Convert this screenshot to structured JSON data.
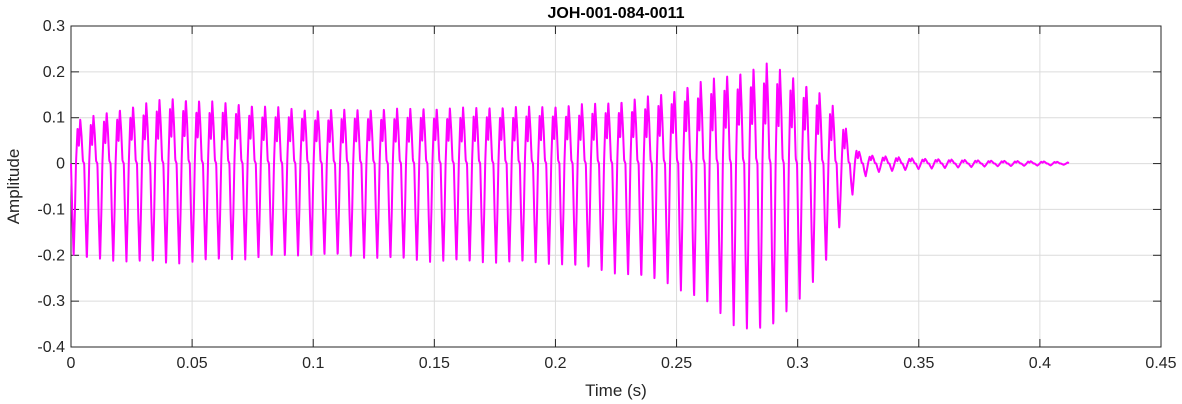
{
  "chart_data": {
    "type": "line",
    "title": "JOH-001-084-0011",
    "xlabel": "Time (s)",
    "ylabel": "Amplitude",
    "xlim": [
      0,
      0.45
    ],
    "ylim": [
      -0.4,
      0.3
    ],
    "x_ticks": [
      0,
      0.05,
      0.1,
      0.15,
      0.2,
      0.25,
      0.3,
      0.35,
      0.4,
      0.45
    ],
    "x_tick_labels": [
      "0",
      "0.05",
      "0.1",
      "0.15",
      "0.2",
      "0.25",
      "0.3",
      "0.35",
      "0.4",
      "0.45"
    ],
    "y_ticks": [
      -0.4,
      -0.3,
      -0.2,
      -0.1,
      0,
      0.1,
      0.2,
      0.3
    ],
    "y_tick_labels": [
      "-0.4",
      "-0.3",
      "-0.2",
      "-0.1",
      "0",
      "0.1",
      "0.2",
      "0.3"
    ],
    "grid": true,
    "box": true,
    "colors": {
      "series": "#ff00ff",
      "grid": "#dcdcdc",
      "axes": "#262626"
    },
    "series": [
      {
        "period_s": 0.00545,
        "waveform_samples": [
          0,
          -0.55,
          -1.0,
          -0.5,
          0.15,
          0.75,
          0.35,
          0.9,
          0.55,
          0.05,
          0
        ],
        "envelope": {
          "x": [
            0,
            0.005,
            0.04,
            0.1,
            0.15,
            0.2,
            0.225,
            0.245,
            0.26,
            0.275,
            0.288,
            0.3,
            0.31,
            0.316,
            0.32,
            0.325,
            0.33,
            0.35,
            0.38,
            0.405,
            0.412
          ],
          "y_max": [
            0.1,
            0.11,
            0.16,
            0.13,
            0.135,
            0.14,
            0.15,
            0.17,
            0.2,
            0.22,
            0.245,
            0.205,
            0.17,
            0.13,
            0.085,
            0.03,
            0.02,
            0.012,
            0.007,
            0.005,
            0.003
          ],
          "y_min": [
            -0.2,
            -0.21,
            -0.22,
            -0.2,
            -0.215,
            -0.22,
            -0.24,
            -0.26,
            -0.3,
            -0.36,
            -0.37,
            -0.3,
            -0.24,
            -0.16,
            -0.1,
            -0.04,
            -0.02,
            -0.012,
            -0.006,
            -0.004,
            -0.002
          ]
        },
        "x_end": 0.412
      }
    ]
  }
}
